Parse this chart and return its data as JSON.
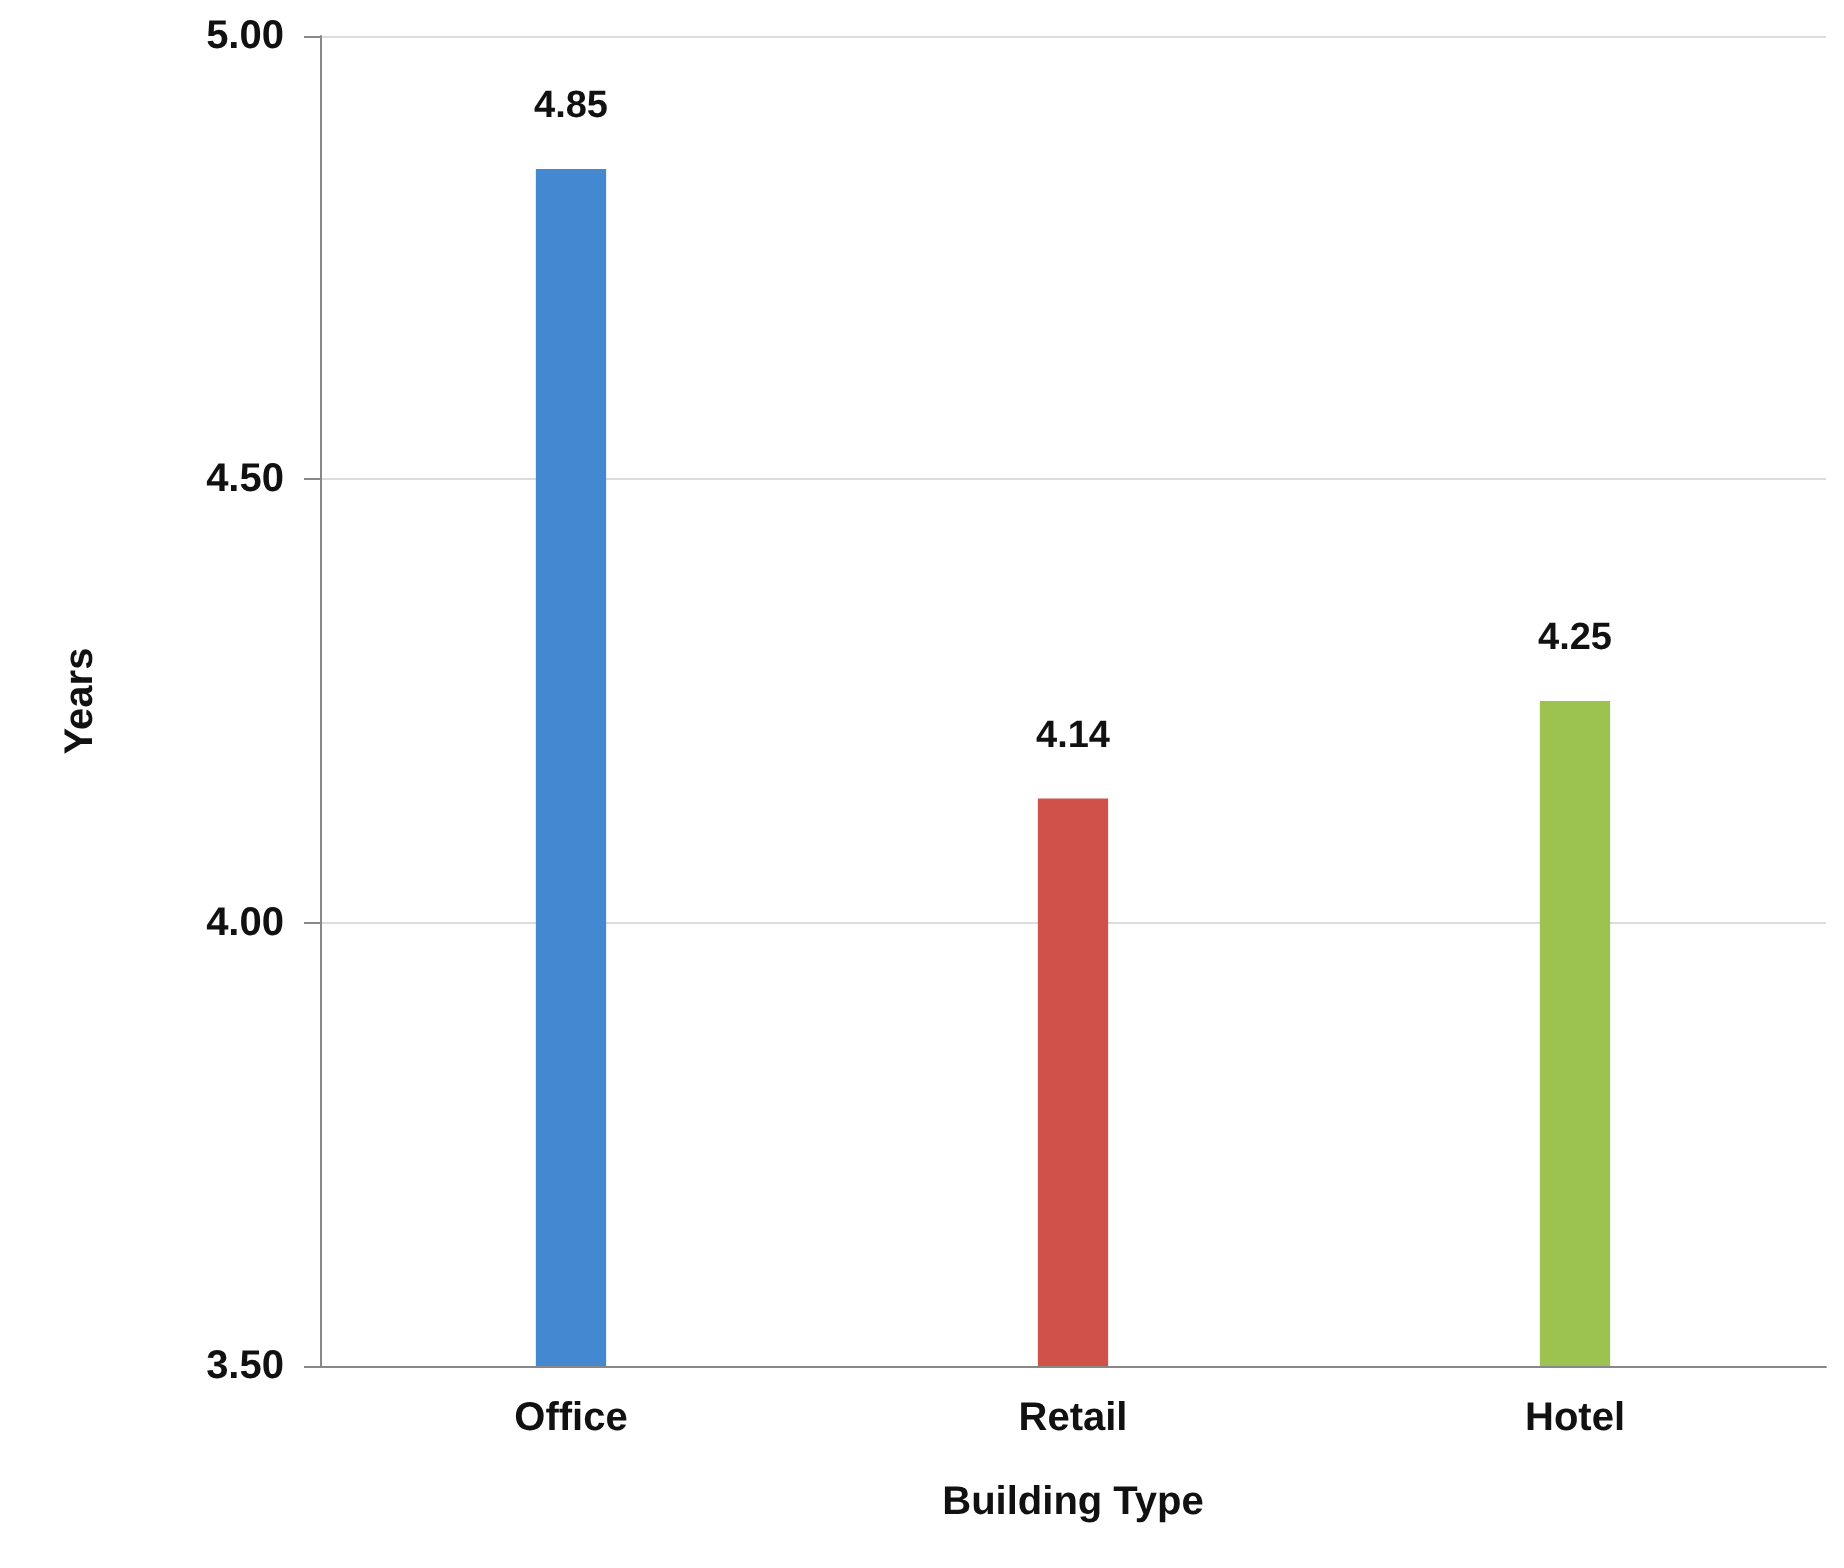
{
  "chart_data": {
    "type": "bar",
    "xlabel": "Building Type",
    "ylabel": "Years",
    "categories": [
      "Office",
      "Retail",
      "Hotel"
    ],
    "values": [
      4.85,
      4.14,
      4.25
    ],
    "colors": [
      "#4388d0",
      "#d0504a",
      "#9cc24f"
    ],
    "ylim": [
      3.5,
      5
    ],
    "yticks": [
      {
        "value": 3.5,
        "label": "3.50"
      },
      {
        "value": 4,
        "label": "4.00"
      },
      {
        "value": 4.5,
        "label": "4.50"
      },
      {
        "value": 5,
        "label": "5.00"
      }
    ],
    "grid": "y",
    "data_labels": true
  }
}
